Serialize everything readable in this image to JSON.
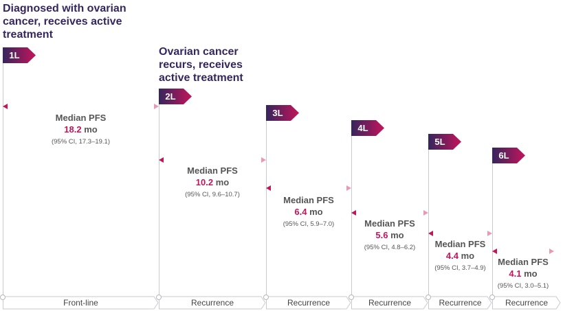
{
  "headings": {
    "diagnosed": [
      "Diagnosed with ovarian",
      "cancer, receives active",
      "treatment"
    ],
    "recurs": [
      "Ovarian cancer",
      "recurs, receives",
      "active treatment"
    ]
  },
  "lines": [
    {
      "label": "1L",
      "pfs_title": "Median PFS",
      "pfs_value": "18.2",
      "pfs_unit": " mo",
      "ci": "(95% CI, 17.3–19.1)",
      "phase": "Front-line"
    },
    {
      "label": "2L",
      "pfs_title": "Median PFS",
      "pfs_value": "10.2",
      "pfs_unit": " mo",
      "ci": "(95% CI, 9.6–10.7)",
      "phase": "Recurrence"
    },
    {
      "label": "3L",
      "pfs_title": "Median PFS",
      "pfs_value": "6.4",
      "pfs_unit": " mo",
      "ci": "(95% CI, 5.9–7.0)",
      "phase": "Recurrence"
    },
    {
      "label": "4L",
      "pfs_title": "Median PFS",
      "pfs_value": "5.6",
      "pfs_unit": " mo",
      "ci": "(95% CI, 4.8–6.2)",
      "phase": "Recurrence"
    },
    {
      "label": "5L",
      "pfs_title": "Median PFS",
      "pfs_value": "4.4",
      "pfs_unit": " mo",
      "ci": "(95% CI, 3.7–4.9)",
      "phase": "Recurrence"
    },
    {
      "label": "6L",
      "pfs_title": "Median PFS",
      "pfs_value": "4.1",
      "pfs_unit": " mo",
      "ci": "(95% CI, 3.0–5.1)",
      "phase": "Recurrence"
    }
  ],
  "colors": {
    "flag_start": "#35265d",
    "flag_end": "#c4145a",
    "arrow_start": "#c4145a",
    "arrow_end": "#e89ab5",
    "heading": "#35265d",
    "value": "#c4145a"
  }
}
